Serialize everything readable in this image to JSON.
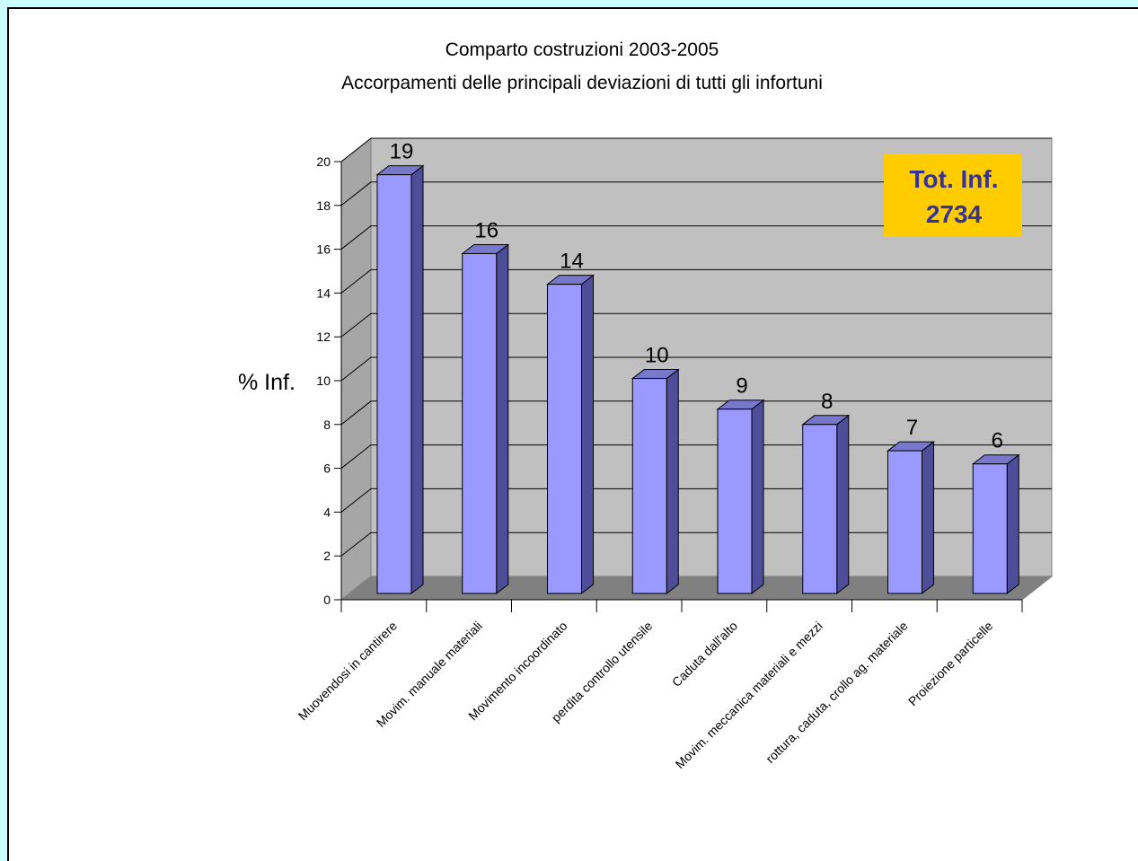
{
  "chart_data": {
    "type": "bar",
    "title": "Comparto costruzioni 2003-2005",
    "subtitle": "Accorpamenti delle principali deviazioni di tutti gli infortuni",
    "ylabel": "% Inf.",
    "xlabel": "",
    "ylim": [
      0,
      20
    ],
    "yticks": [
      0,
      2,
      4,
      6,
      8,
      10,
      12,
      14,
      16,
      18,
      20
    ],
    "grid": true,
    "categories": [
      "Muovendosi in cantirere",
      "Movim. manuale materiali",
      "Movimento incoordinato",
      "perdita controllo utensile",
      "Caduta dall'alto",
      "Movim. meccanica materiali e mezzi",
      "rottura, caduta, crollo ag. materiale",
      "Proiezione particelle"
    ],
    "values": [
      19.4,
      15.8,
      14.4,
      10.1,
      8.7,
      8.0,
      6.8,
      6.2
    ],
    "data_labels": [
      "19",
      "16",
      "14",
      "10",
      "9",
      "8",
      "7",
      "6"
    ],
    "annotation": {
      "line1": "Tot. Inf.",
      "line2": "2734"
    },
    "colors": {
      "bar_front": "#9999ff",
      "bar_side": "#4d4d9a",
      "bar_top": "#7777cc",
      "wall": "#c0c0c0",
      "floor": "#808080",
      "annotation_bg": "#ffcc00",
      "annotation_text": "#333399",
      "background": "#ccffff"
    }
  }
}
